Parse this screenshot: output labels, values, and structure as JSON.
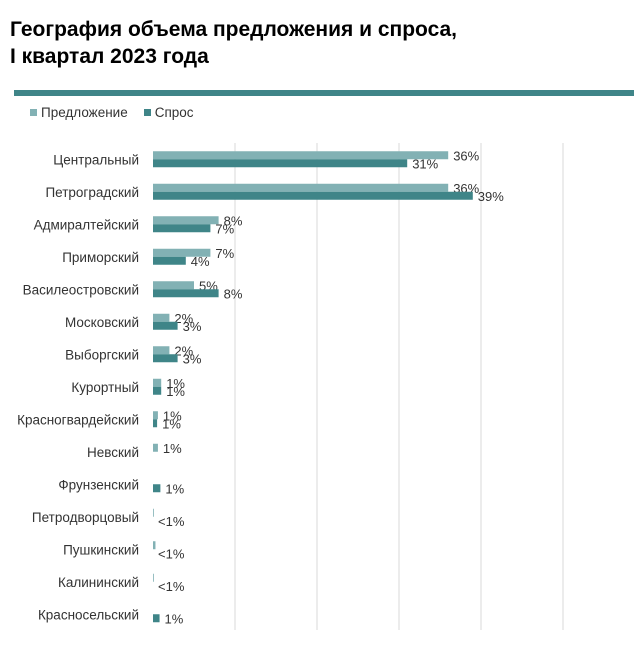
{
  "title_lines": [
    "География объема предложения и спроса,",
    "I квартал 2023 года"
  ],
  "colors": {
    "accent_rule": "#3f8588",
    "supply": "#82b1b4",
    "demand": "#3f8588",
    "grid": "#d9d9d9",
    "text": "#333333"
  },
  "chart_data": {
    "type": "bar",
    "orientation": "horizontal",
    "title": "География объема предложения и спроса, I квартал 2023 года",
    "xlabel": "",
    "ylabel": "",
    "xlim": [
      0,
      60
    ],
    "grid": true,
    "legend_placement": "top-left",
    "categories": [
      "Центральный",
      "Петроградский",
      "Адмиралтейский",
      "Приморский",
      "Василеостровский",
      "Московский",
      "Выборгский",
      "Курортный",
      "Красногвардейский",
      "Невский",
      "Фрунзенский",
      "Петродворцовый",
      "Пушкинский",
      "Калининский",
      "Красносельский"
    ],
    "series": [
      {
        "name": "Предложение",
        "values": [
          36,
          36,
          8,
          7,
          5,
          2,
          2,
          1,
          0.6,
          0.6,
          0,
          0.1,
          0.3,
          0.1,
          0
        ],
        "labels": [
          "36%",
          "36%",
          "8%",
          "7%",
          "5%",
          "2%",
          "2%",
          "1%",
          "1%",
          "1%",
          "",
          "",
          "",
          "",
          ""
        ]
      },
      {
        "name": "Спрос",
        "values": [
          31,
          39,
          7,
          4,
          8,
          3,
          3,
          1,
          0.5,
          0,
          0.9,
          0,
          0,
          0,
          0.8
        ],
        "labels": [
          "31%",
          "39%",
          "7%",
          "4%",
          "8%",
          "3%",
          "3%",
          "1%",
          "1%",
          "",
          "1%",
          "<1%",
          "<1%",
          "<1%",
          "1%"
        ]
      }
    ]
  }
}
